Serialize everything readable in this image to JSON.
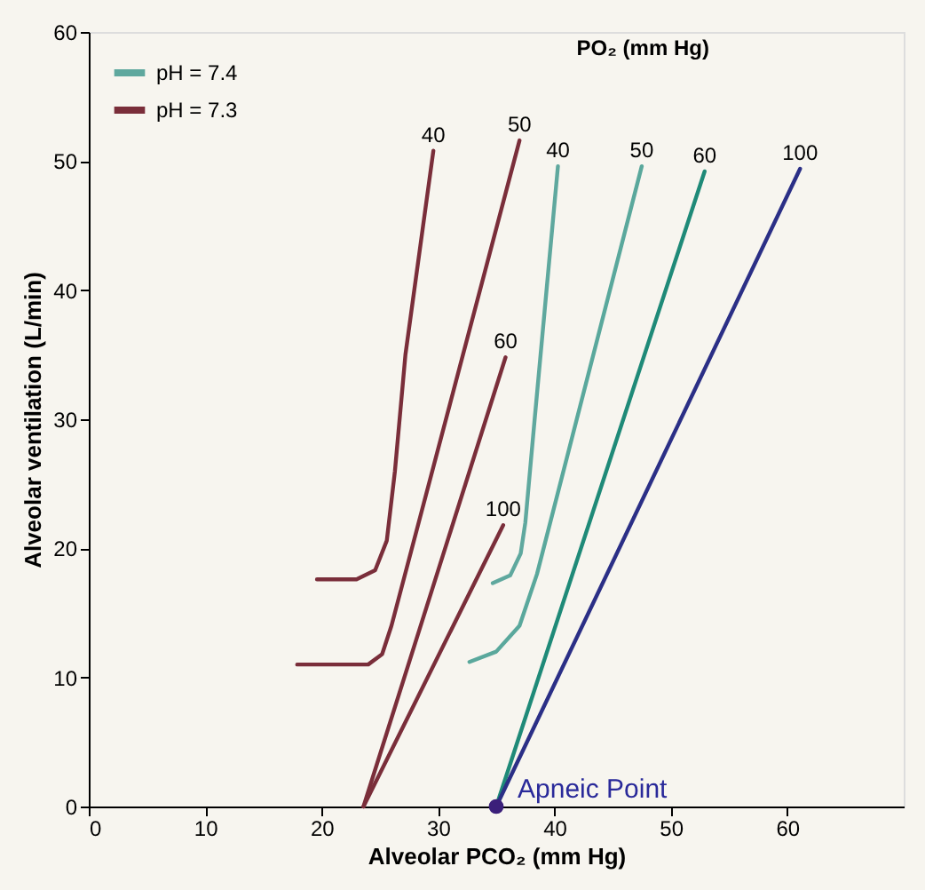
{
  "chart_data": {
    "type": "line",
    "xlabel": "Alveolar PCO₂ (mm Hg)",
    "ylabel": "Alveolar ventilation (L/min)",
    "xlim": [
      0,
      70
    ],
    "ylim": [
      0,
      60
    ],
    "xticks": [
      0,
      10,
      20,
      30,
      40,
      50,
      60
    ],
    "yticks": [
      0,
      10,
      20,
      30,
      40,
      50,
      60
    ],
    "grid": false,
    "legend": "top left",
    "line_style": "solid",
    "series": [
      {
        "name": "pH = 7.4",
        "color": "#5fa89e",
        "x": [
          34.7,
          36.2,
          37.1,
          37.5,
          38.3,
          40.3
        ],
        "values": [
          17.3,
          17.9,
          19.6,
          22,
          30,
          49.6
        ]
      },
      {
        "color": "#5aa89c",
        "x": [
          32.7,
          35,
          37,
          38.5,
          47.5
        ],
        "values": [
          11.2,
          12,
          14,
          18,
          49.6
        ]
      },
      {
        "color": "#1f8a78",
        "x": [
          35,
          52.9
        ],
        "values": [
          0,
          49.2
        ]
      },
      {
        "color": "#2b2f86",
        "x": [
          35,
          61.1
        ],
        "values": [
          0,
          49.4
        ]
      },
      {
        "name": "pH = 7.3",
        "color": "#7a2e3a",
        "x": [
          19.6,
          23,
          24.6,
          25.6,
          26.3,
          27.2,
          29.6
        ],
        "values": [
          17.6,
          17.6,
          18.3,
          20.6,
          26,
          35,
          50.8
        ]
      },
      {
        "color": "#7a2e3a",
        "x": [
          17.9,
          24,
          25.2,
          26,
          37
        ],
        "values": [
          11,
          11,
          11.8,
          14,
          51.6
        ]
      },
      {
        "color": "#7a2e3a",
        "x": [
          23.6,
          35.8
        ],
        "values": [
          0,
          34.8
        ]
      },
      {
        "color": "#7a2e3a",
        "x": [
          23.6,
          35.6
        ],
        "values": [
          0,
          21.8
        ]
      },
      {
        "type": "scatter",
        "marker": "circle",
        "color": "#3b1f7a",
        "x": [
          35
        ],
        "values": [
          0
        ]
      }
    ],
    "annotations": [
      {
        "text": "40",
        "x": 29.6,
        "y": 50.8
      },
      {
        "text": "50",
        "x": 37,
        "y": 51.6
      },
      {
        "text": "60",
        "x": 35.8,
        "y": 34.8
      },
      {
        "text": "100",
        "x": 35.6,
        "y": 21.8
      },
      {
        "text": "40",
        "x": 40.3,
        "y": 49.6
      },
      {
        "text": "50",
        "x": 47.5,
        "y": 49.6
      },
      {
        "text": "60",
        "x": 52.9,
        "y": 49.2
      },
      {
        "text": "100",
        "x": 61.1,
        "y": 49.4
      },
      "PO₂ (mm Hg)",
      {
        "text": "Apneic Point",
        "x": 35,
        "y": 0
      }
    ]
  }
}
